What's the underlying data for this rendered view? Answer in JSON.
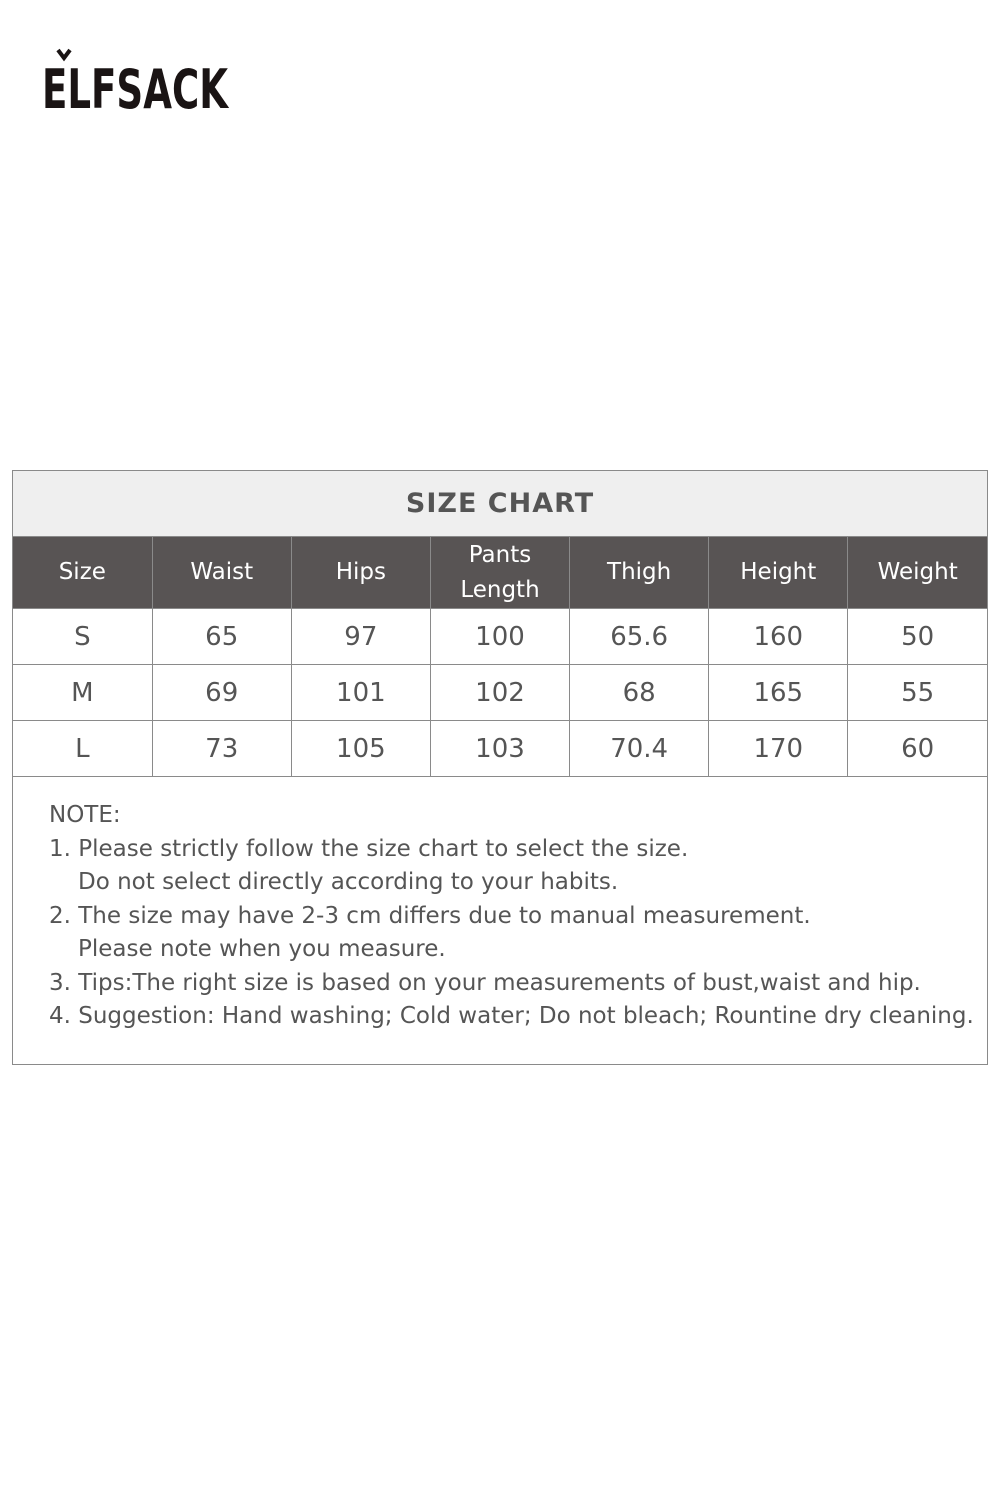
{
  "brand": {
    "logo_text": "ELFSACK"
  },
  "size_chart": {
    "title": "SIZE CHART",
    "headers": [
      "Size",
      "Waist",
      "Hips",
      "Pants Length",
      "Thigh",
      "Height",
      "Weight"
    ],
    "rows": [
      [
        "S",
        "65",
        "97",
        "100",
        "65.6",
        "160",
        "50"
      ],
      [
        "M",
        "69",
        "101",
        "102",
        "68",
        "165",
        "55"
      ],
      [
        "L",
        "73",
        "105",
        "103",
        "70.4",
        "170",
        "60"
      ]
    ]
  },
  "notes": {
    "heading": "NOTE:",
    "lines": [
      "1. Please strictly follow the size chart to select the size.",
      "Do not select directly according to your habits.",
      "2. The size may have 2-3 cm differs due to manual measurement.",
      "Please note when you measure.",
      "3. Tips:The right size is based on your measurements of bust,waist and hip.",
      "4. Suggestion: Hand washing; Cold water; Do not bleach; Rountine dry cleaning."
    ]
  }
}
